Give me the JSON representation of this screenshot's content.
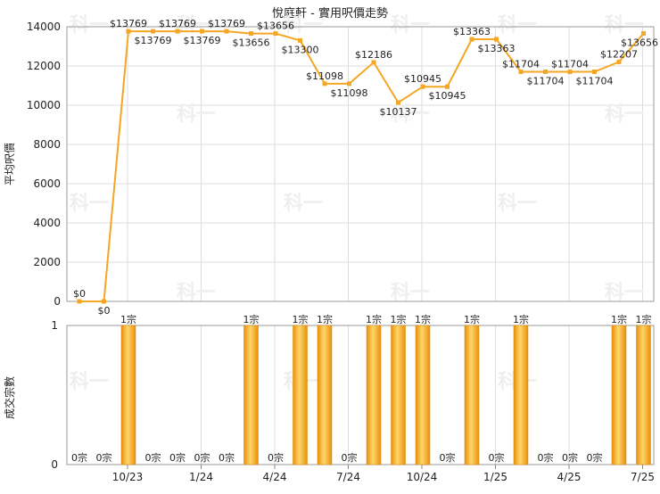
{
  "chart_data": [
    {
      "type": "line",
      "title": "悅庭軒 - 實用呎價走勢",
      "ylabel": "平均呎價",
      "ylim": [
        0,
        14000
      ],
      "yticks": [
        "0",
        "2000",
        "4000",
        "6000",
        "8000",
        "10000",
        "12000",
        "14000"
      ],
      "series": [
        {
          "values": [
            0,
            0,
            13769,
            13769,
            13769,
            13769,
            13769,
            13656,
            13656,
            13300,
            11098,
            11098,
            12186,
            10137,
            10945,
            10945,
            13363,
            13363,
            11704,
            11704,
            11704,
            11704,
            12207,
            13656
          ],
          "labels": [
            "$0",
            "$0",
            "$13769",
            "$13769",
            "$13769",
            "$13769",
            "$13769",
            "$13656",
            "$13656",
            "$13300",
            "$11098",
            "$11098",
            "$12186",
            "$10137",
            "$10945",
            "$10945",
            "$13363",
            "$13363",
            "$11704",
            "$11704",
            "$11704",
            "$11704",
            "$12207",
            "$13656"
          ]
        }
      ],
      "grid": true,
      "color": "#f5a623"
    },
    {
      "type": "bar",
      "ylabel": "成交宗數",
      "ylim": [
        0,
        1
      ],
      "yticks": [
        "0",
        "1"
      ],
      "values": [
        0,
        0,
        1,
        0,
        0,
        0,
        0,
        1,
        0,
        1,
        1,
        0,
        1,
        1,
        1,
        0,
        1,
        0,
        1,
        0,
        0,
        0,
        1,
        1
      ],
      "labels": [
        "0宗",
        "0宗",
        "1宗",
        "0宗",
        "0宗",
        "0宗",
        "0宗",
        "1宗",
        "0宗",
        "1宗",
        "1宗",
        "0宗",
        "1宗",
        "1宗",
        "1宗",
        "0宗",
        "1宗",
        "0宗",
        "1宗",
        "0宗",
        "0宗",
        "0宗",
        "1宗",
        "1宗"
      ],
      "categories": [
        "10/23",
        "1/24",
        "4/24",
        "7/24",
        "10/24",
        "1/25",
        "4/25",
        "7/25"
      ],
      "grid": true,
      "color": "#f5a623"
    }
  ],
  "watermark": "科一"
}
